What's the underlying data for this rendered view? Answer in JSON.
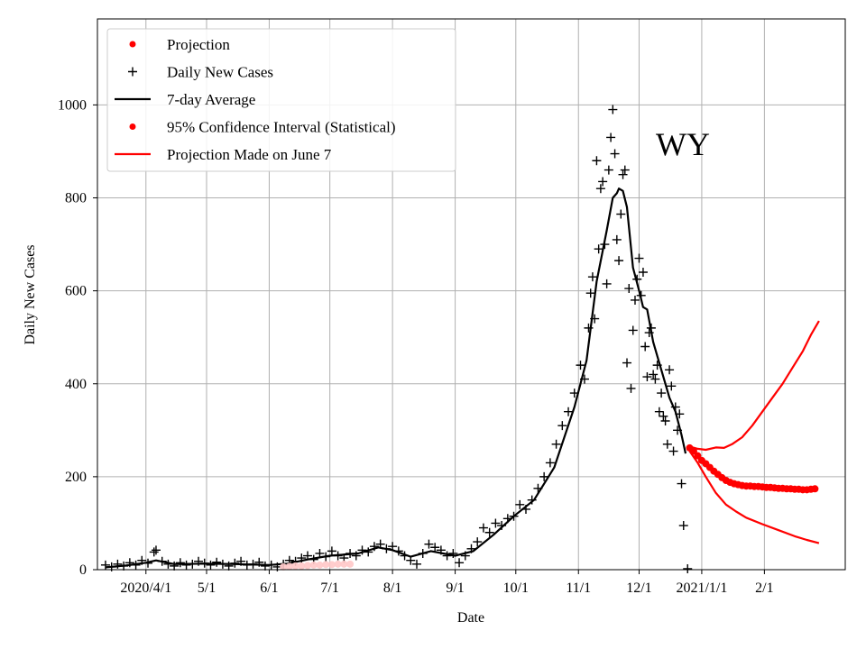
{
  "chart_data": {
    "type": "scatter",
    "title": "",
    "xlabel": "Date",
    "ylabel": "Daily New Cases",
    "annotation": "WY",
    "grid": true,
    "legend_position": "top-left",
    "x_start_date": "2020-03-01",
    "xlim": [
      "2020-03-08",
      "2021-03-13"
    ],
    "ylim": [
      0,
      1185
    ],
    "x_ticks": [
      {
        "date": "2020-04-01",
        "label": "2020/4/1"
      },
      {
        "date": "2020-05-01",
        "label": "5/1"
      },
      {
        "date": "2020-06-01",
        "label": "6/1"
      },
      {
        "date": "2020-07-01",
        "label": "7/1"
      },
      {
        "date": "2020-08-01",
        "label": "8/1"
      },
      {
        "date": "2020-09-01",
        "label": "9/1"
      },
      {
        "date": "2020-10-01",
        "label": "10/1"
      },
      {
        "date": "2020-11-01",
        "label": "11/1"
      },
      {
        "date": "2020-12-01",
        "label": "12/1"
      },
      {
        "date": "2021-01-01",
        "label": "2021/1/1"
      },
      {
        "date": "2021-02-01",
        "label": "2/1"
      }
    ],
    "y_ticks": [
      0,
      200,
      400,
      600,
      800,
      1000
    ],
    "legend": [
      {
        "label": "Projection",
        "marker": "dot",
        "color": "#ff0000"
      },
      {
        "label": "Daily New Cases",
        "marker": "plus",
        "color": "#000000"
      },
      {
        "label": "7-day Average",
        "marker": "line",
        "color": "#000000"
      },
      {
        "label": "95% Confidence Interval (Statistical)",
        "marker": "dot",
        "color": "#ff0000"
      },
      {
        "label": "Projection Made on June 7",
        "marker": "line",
        "color": "#ff0000"
      }
    ],
    "series": [
      {
        "name": "Daily New Cases",
        "style": "plus",
        "color": "#000000",
        "points": [
          [
            "2020-03-12",
            10
          ],
          [
            "2020-03-15",
            6
          ],
          [
            "2020-03-18",
            12
          ],
          [
            "2020-03-21",
            8
          ],
          [
            "2020-03-24",
            15
          ],
          [
            "2020-03-27",
            10
          ],
          [
            "2020-03-30",
            20
          ],
          [
            "2020-04-02",
            14
          ],
          [
            "2020-04-05",
            38
          ],
          [
            "2020-04-06",
            42
          ],
          [
            "2020-04-09",
            18
          ],
          [
            "2020-04-12",
            12
          ],
          [
            "2020-04-15",
            8
          ],
          [
            "2020-04-18",
            15
          ],
          [
            "2020-04-21",
            10
          ],
          [
            "2020-04-24",
            12
          ],
          [
            "2020-04-27",
            18
          ],
          [
            "2020-04-30",
            14
          ],
          [
            "2020-05-03",
            10
          ],
          [
            "2020-05-06",
            16
          ],
          [
            "2020-05-09",
            12
          ],
          [
            "2020-05-12",
            8
          ],
          [
            "2020-05-15",
            14
          ],
          [
            "2020-05-18",
            18
          ],
          [
            "2020-05-21",
            10
          ],
          [
            "2020-05-24",
            12
          ],
          [
            "2020-05-27",
            16
          ],
          [
            "2020-05-30",
            8
          ],
          [
            "2020-06-02",
            10
          ],
          [
            "2020-06-05",
            6
          ],
          [
            "2020-06-08",
            12
          ],
          [
            "2020-06-11",
            20
          ],
          [
            "2020-06-14",
            18
          ],
          [
            "2020-06-17",
            25
          ],
          [
            "2020-06-20",
            30
          ],
          [
            "2020-06-23",
            22
          ],
          [
            "2020-06-26",
            35
          ],
          [
            "2020-06-29",
            28
          ],
          [
            "2020-07-02",
            40
          ],
          [
            "2020-07-05",
            30
          ],
          [
            "2020-07-08",
            25
          ],
          [
            "2020-07-11",
            35
          ],
          [
            "2020-07-14",
            30
          ],
          [
            "2020-07-17",
            42
          ],
          [
            "2020-07-20",
            38
          ],
          [
            "2020-07-23",
            50
          ],
          [
            "2020-07-26",
            55
          ],
          [
            "2020-07-29",
            45
          ],
          [
            "2020-08-01",
            50
          ],
          [
            "2020-08-04",
            40
          ],
          [
            "2020-08-07",
            30
          ],
          [
            "2020-08-10",
            20
          ],
          [
            "2020-08-13",
            12
          ],
          [
            "2020-08-16",
            35
          ],
          [
            "2020-08-19",
            55
          ],
          [
            "2020-08-22",
            48
          ],
          [
            "2020-08-25",
            42
          ],
          [
            "2020-08-28",
            30
          ],
          [
            "2020-08-31",
            35
          ],
          [
            "2020-09-03",
            15
          ],
          [
            "2020-09-06",
            30
          ],
          [
            "2020-09-09",
            45
          ],
          [
            "2020-09-12",
            60
          ],
          [
            "2020-09-15",
            90
          ],
          [
            "2020-09-18",
            80
          ],
          [
            "2020-09-21",
            100
          ],
          [
            "2020-09-24",
            95
          ],
          [
            "2020-09-27",
            110
          ],
          [
            "2020-09-30",
            115
          ],
          [
            "2020-10-03",
            140
          ],
          [
            "2020-10-06",
            130
          ],
          [
            "2020-10-09",
            150
          ],
          [
            "2020-10-12",
            175
          ],
          [
            "2020-10-15",
            200
          ],
          [
            "2020-10-18",
            230
          ],
          [
            "2020-10-21",
            270
          ],
          [
            "2020-10-24",
            310
          ],
          [
            "2020-10-27",
            340
          ],
          [
            "2020-10-30",
            380
          ],
          [
            "2020-11-02",
            440
          ],
          [
            "2020-11-04",
            410
          ],
          [
            "2020-11-06",
            520
          ],
          [
            "2020-11-07",
            595
          ],
          [
            "2020-11-08",
            630
          ],
          [
            "2020-11-09",
            540
          ],
          [
            "2020-11-10",
            880
          ],
          [
            "2020-11-11",
            690
          ],
          [
            "2020-11-12",
            820
          ],
          [
            "2020-11-13",
            835
          ],
          [
            "2020-11-14",
            700
          ],
          [
            "2020-11-15",
            615
          ],
          [
            "2020-11-16",
            860
          ],
          [
            "2020-11-17",
            930
          ],
          [
            "2020-11-18",
            990
          ],
          [
            "2020-11-19",
            895
          ],
          [
            "2020-11-20",
            710
          ],
          [
            "2020-11-21",
            665
          ],
          [
            "2020-11-22",
            765
          ],
          [
            "2020-11-23",
            850
          ],
          [
            "2020-11-24",
            860
          ],
          [
            "2020-11-25",
            445
          ],
          [
            "2020-11-26",
            605
          ],
          [
            "2020-11-27",
            390
          ],
          [
            "2020-11-28",
            515
          ],
          [
            "2020-11-29",
            580
          ],
          [
            "2020-11-30",
            625
          ],
          [
            "2020-12-01",
            670
          ],
          [
            "2020-12-02",
            590
          ],
          [
            "2020-12-03",
            640
          ],
          [
            "2020-12-04",
            480
          ],
          [
            "2020-12-05",
            415
          ],
          [
            "2020-12-06",
            510
          ],
          [
            "2020-12-07",
            520
          ],
          [
            "2020-12-08",
            420
          ],
          [
            "2020-12-09",
            410
          ],
          [
            "2020-12-10",
            440
          ],
          [
            "2020-12-11",
            340
          ],
          [
            "2020-12-12",
            380
          ],
          [
            "2020-12-13",
            330
          ],
          [
            "2020-12-14",
            320
          ],
          [
            "2020-12-15",
            270
          ],
          [
            "2020-12-16",
            430
          ],
          [
            "2020-12-17",
            395
          ],
          [
            "2020-12-18",
            255
          ],
          [
            "2020-12-19",
            350
          ],
          [
            "2020-12-20",
            300
          ],
          [
            "2020-12-21",
            335
          ],
          [
            "2020-12-22",
            185
          ],
          [
            "2020-12-23",
            95
          ],
          [
            "2020-12-25",
            2
          ]
        ]
      },
      {
        "name": "7-day Average",
        "style": "line",
        "color": "#000000",
        "points": [
          [
            "2020-03-12",
            5
          ],
          [
            "2020-03-22",
            9
          ],
          [
            "2020-04-01",
            15
          ],
          [
            "2020-04-06",
            20
          ],
          [
            "2020-04-15",
            12
          ],
          [
            "2020-05-01",
            13
          ],
          [
            "2020-05-15",
            12
          ],
          [
            "2020-06-01",
            10
          ],
          [
            "2020-06-10",
            13
          ],
          [
            "2020-06-20",
            22
          ],
          [
            "2020-07-01",
            30
          ],
          [
            "2020-07-15",
            35
          ],
          [
            "2020-07-25",
            48
          ],
          [
            "2020-08-01",
            42
          ],
          [
            "2020-08-10",
            28
          ],
          [
            "2020-08-20",
            40
          ],
          [
            "2020-09-01",
            30
          ],
          [
            "2020-09-10",
            40
          ],
          [
            "2020-09-20",
            75
          ],
          [
            "2020-09-30",
            115
          ],
          [
            "2020-10-10",
            150
          ],
          [
            "2020-10-20",
            220
          ],
          [
            "2020-10-30",
            350
          ],
          [
            "2020-11-05",
            450
          ],
          [
            "2020-11-10",
            620
          ],
          [
            "2020-11-15",
            730
          ],
          [
            "2020-11-18",
            800
          ],
          [
            "2020-11-20",
            810
          ],
          [
            "2020-11-21",
            820
          ],
          [
            "2020-11-23",
            815
          ],
          [
            "2020-11-25",
            780
          ],
          [
            "2020-11-28",
            650
          ],
          [
            "2020-12-01",
            600
          ],
          [
            "2020-12-03",
            565
          ],
          [
            "2020-12-05",
            560
          ],
          [
            "2020-12-08",
            490
          ],
          [
            "2020-12-12",
            430
          ],
          [
            "2020-12-16",
            370
          ],
          [
            "2020-12-19",
            340
          ],
          [
            "2020-12-22",
            290
          ],
          [
            "2020-12-24",
            250
          ]
        ]
      },
      {
        "name": "Projection",
        "style": "dots",
        "color": "#ff0000",
        "points": [
          [
            "2020-12-26",
            262
          ],
          [
            "2020-12-28",
            255
          ],
          [
            "2020-12-30",
            245
          ],
          [
            "2021-01-01",
            235
          ],
          [
            "2021-01-03",
            228
          ],
          [
            "2021-01-05",
            220
          ],
          [
            "2021-01-07",
            212
          ],
          [
            "2021-01-09",
            205
          ],
          [
            "2021-01-11",
            198
          ],
          [
            "2021-01-13",
            192
          ],
          [
            "2021-01-15",
            188
          ],
          [
            "2021-01-17",
            185
          ],
          [
            "2021-01-19",
            183
          ],
          [
            "2021-01-21",
            181
          ],
          [
            "2021-01-23",
            180
          ],
          [
            "2021-01-25",
            180
          ],
          [
            "2021-01-27",
            179
          ],
          [
            "2021-01-29",
            179
          ],
          [
            "2021-01-31",
            178
          ],
          [
            "2021-02-02",
            177
          ],
          [
            "2021-02-04",
            177
          ],
          [
            "2021-02-06",
            176
          ],
          [
            "2021-02-08",
            175
          ],
          [
            "2021-02-10",
            175
          ],
          [
            "2021-02-12",
            174
          ],
          [
            "2021-02-14",
            174
          ],
          [
            "2021-02-16",
            173
          ],
          [
            "2021-02-18",
            173
          ],
          [
            "2021-02-20",
            172
          ],
          [
            "2021-02-22",
            172
          ],
          [
            "2021-02-24",
            173
          ],
          [
            "2021-02-26",
            174
          ]
        ]
      },
      {
        "name": "CI Upper",
        "style": "line",
        "color": "#ff0000",
        "points": [
          [
            "2020-12-26",
            265
          ],
          [
            "2020-12-30",
            260
          ],
          [
            "2021-01-03",
            258
          ],
          [
            "2021-01-08",
            263
          ],
          [
            "2021-01-12",
            262
          ],
          [
            "2021-01-16",
            270
          ],
          [
            "2021-01-21",
            285
          ],
          [
            "2021-01-26",
            310
          ],
          [
            "2021-01-31",
            340
          ],
          [
            "2021-02-05",
            370
          ],
          [
            "2021-02-10",
            400
          ],
          [
            "2021-02-15",
            435
          ],
          [
            "2021-02-20",
            470
          ],
          [
            "2021-02-24",
            505
          ],
          [
            "2021-02-28",
            535
          ]
        ]
      },
      {
        "name": "CI Lower",
        "style": "line",
        "color": "#ff0000",
        "points": [
          [
            "2020-12-26",
            255
          ],
          [
            "2020-12-30",
            230
          ],
          [
            "2021-01-03",
            200
          ],
          [
            "2021-01-08",
            165
          ],
          [
            "2021-01-13",
            140
          ],
          [
            "2021-01-18",
            125
          ],
          [
            "2021-01-23",
            112
          ],
          [
            "2021-01-31",
            98
          ],
          [
            "2021-02-08",
            85
          ],
          [
            "2021-02-16",
            72
          ],
          [
            "2021-02-22",
            64
          ],
          [
            "2021-02-28",
            57
          ]
        ]
      },
      {
        "name": "Projection Made on June 7",
        "style": "faint-dots",
        "color": "#ffc8c8",
        "points": [
          [
            "2020-06-08",
            6
          ],
          [
            "2020-06-11",
            7
          ],
          [
            "2020-06-14",
            8
          ],
          [
            "2020-06-17",
            8
          ],
          [
            "2020-06-20",
            9
          ],
          [
            "2020-06-23",
            10
          ],
          [
            "2020-06-26",
            10
          ],
          [
            "2020-06-29",
            11
          ],
          [
            "2020-07-02",
            11
          ],
          [
            "2020-07-05",
            12
          ],
          [
            "2020-07-08",
            12
          ],
          [
            "2020-07-11",
            12
          ]
        ]
      }
    ]
  }
}
